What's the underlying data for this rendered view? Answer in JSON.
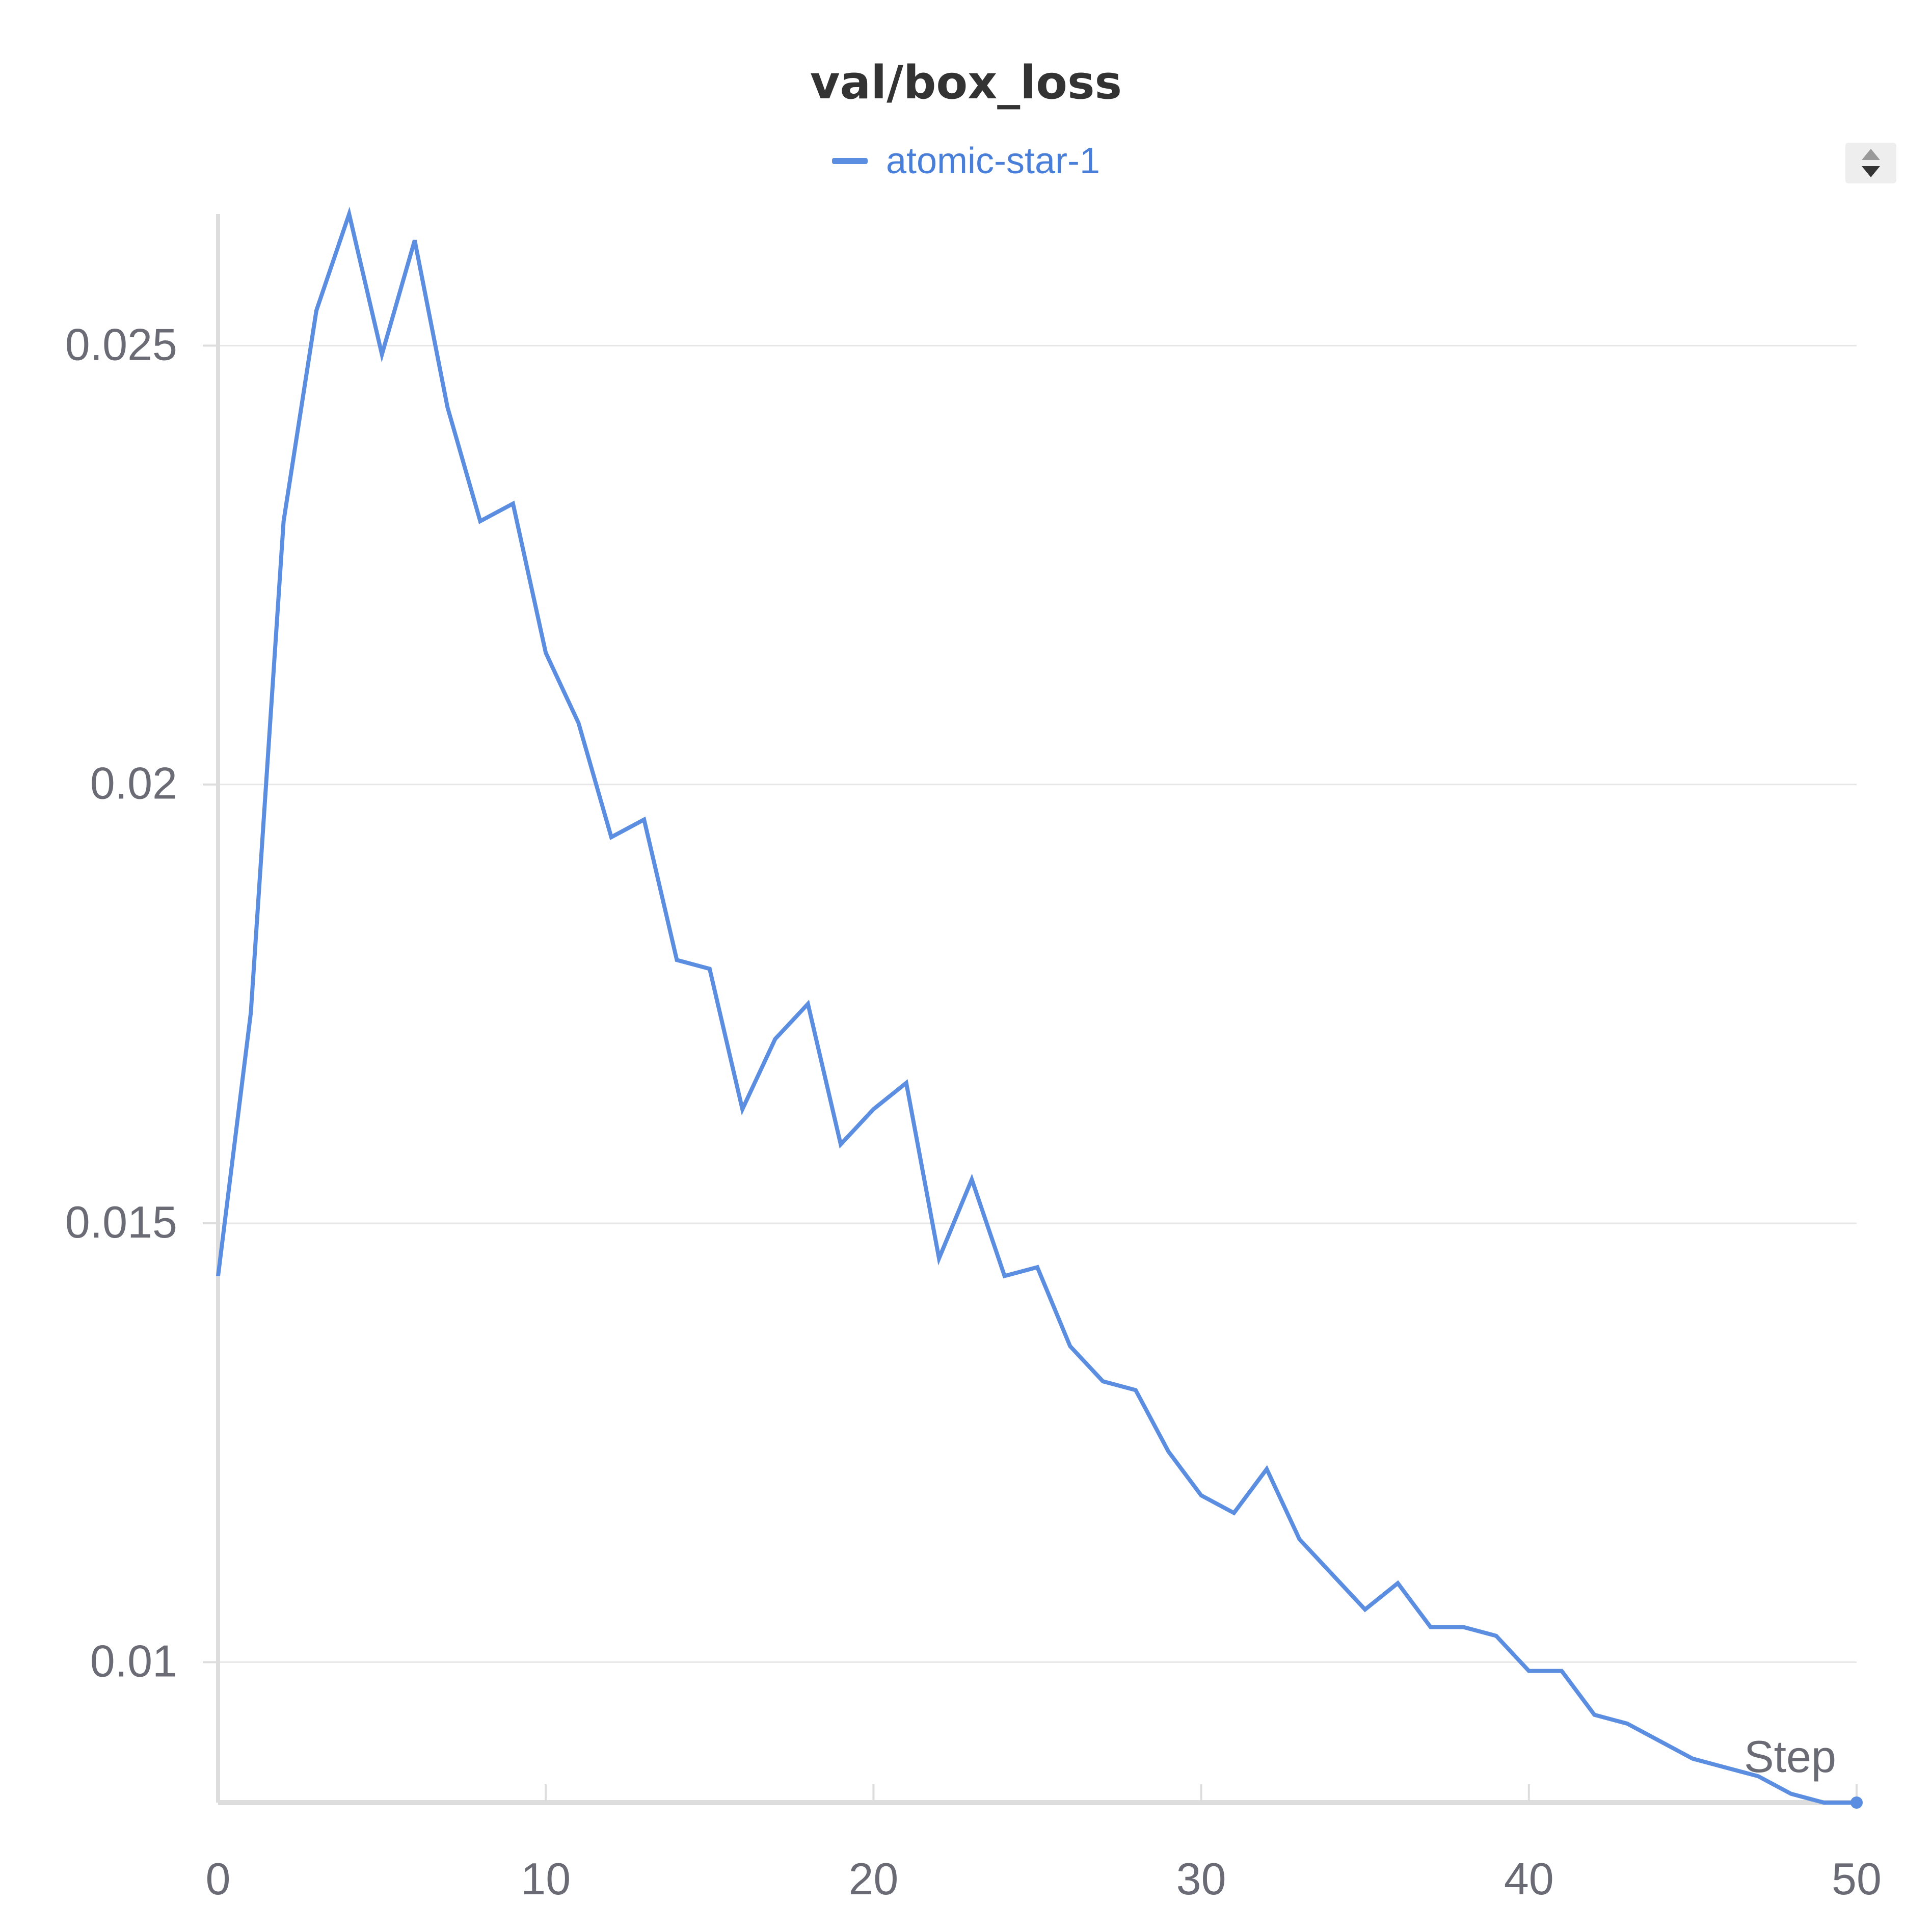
{
  "chart_data": {
    "type": "line",
    "title": "val/box_loss",
    "xlabel": "Step",
    "ylabel": "",
    "xlim": [
      0,
      50
    ],
    "ylim": [
      0.0084,
      0.0265
    ],
    "x_ticks": [
      0,
      10,
      20,
      30,
      40,
      50
    ],
    "y_ticks": [
      0.01,
      0.015,
      0.02,
      0.025
    ],
    "x_tick_labels": [
      "0",
      "10",
      "20",
      "30",
      "40",
      "50"
    ],
    "y_tick_labels": [
      "0.01",
      "0.015",
      "0.02",
      "0.025"
    ],
    "grid": true,
    "legend": "top-center",
    "series": [
      {
        "name": "atomic-star-1",
        "color": "#5b8ee0",
        "x": [
          0,
          1,
          2,
          3,
          4,
          5,
          6,
          7,
          8,
          9,
          10,
          11,
          12,
          13,
          14,
          15,
          16,
          17,
          18,
          19,
          20,
          21,
          22,
          23,
          24,
          25,
          26,
          27,
          28,
          29,
          30,
          31,
          32,
          33,
          34,
          35,
          36,
          37,
          38,
          39,
          40,
          41,
          42,
          43,
          44,
          45,
          46,
          47,
          48,
          49,
          50
        ],
        "values": [
          0.0144,
          0.0174,
          0.023,
          0.0254,
          0.0265,
          0.0249,
          0.0262,
          0.0243,
          0.023,
          0.0232,
          0.0215,
          0.0207,
          0.0194,
          0.0196,
          0.018,
          0.0179,
          0.0163,
          0.0171,
          0.0175,
          0.0159,
          0.0163,
          0.0166,
          0.0146,
          0.0155,
          0.0144,
          0.0145,
          0.0136,
          0.0132,
          0.0131,
          0.0124,
          0.0119,
          0.0117,
          0.0122,
          0.0114,
          0.011,
          0.0106,
          0.0109,
          0.0104,
          0.0104,
          0.0103,
          0.0099,
          0.0099,
          0.0094,
          0.0093,
          0.0091,
          0.0089,
          0.0088,
          0.0087,
          0.0085,
          0.0084,
          0.0084
        ]
      }
    ]
  },
  "legend": {
    "label": "atomic-star-1",
    "color": "#5b8ee0"
  },
  "colors": {
    "grid": "#e6e6e6",
    "axis": "#dddddd",
    "tick_text": "#6b6b76"
  },
  "icons": {
    "sort": "sort-arrows-icon"
  }
}
